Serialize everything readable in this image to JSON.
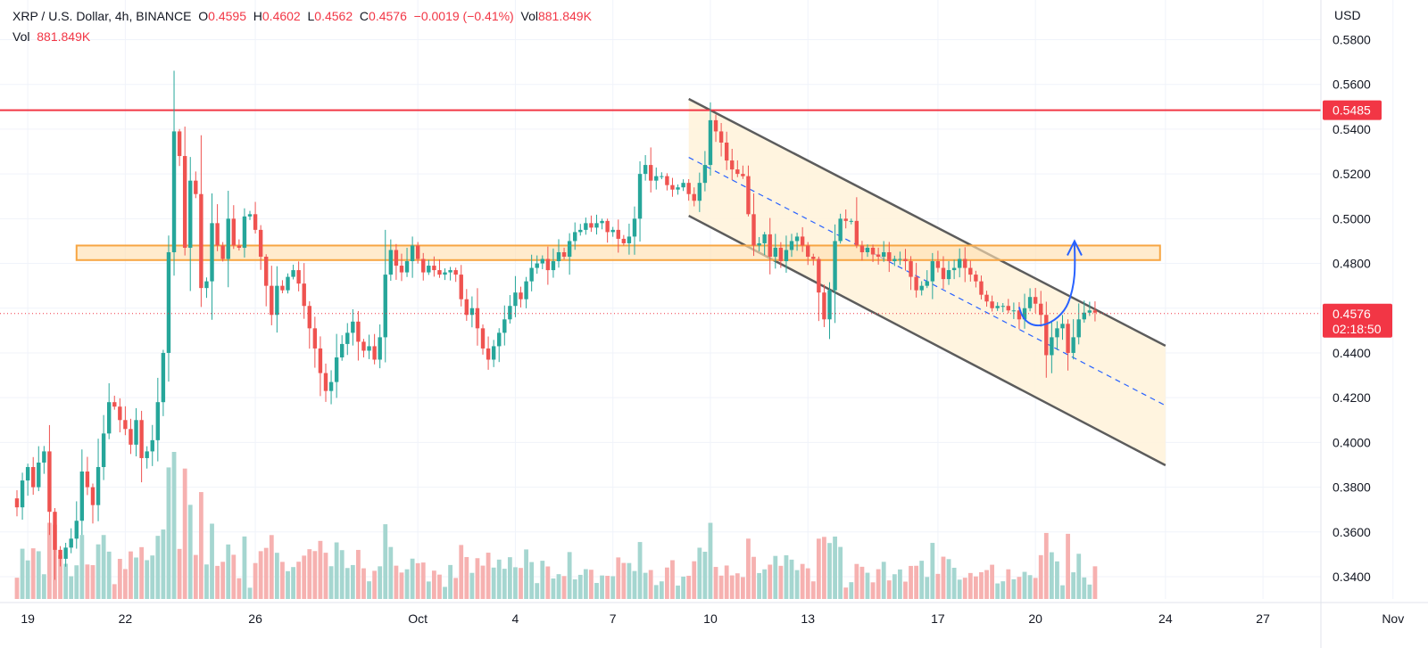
{
  "header": {
    "symbol": "XRP / U.S. Dollar, 4h, BINANCE",
    "o_label": "O",
    "o_value": "0.4595",
    "h_label": "H",
    "h_value": "0.4602",
    "l_label": "L",
    "l_value": "0.4562",
    "c_label": "C",
    "c_value": "0.4576",
    "change": "−0.0019 (−0.41%)",
    "vol_label": "Vol",
    "vol_value": "881.849K"
  },
  "vol_row": {
    "label": "Vol",
    "value": "881.849K"
  },
  "price_axis": {
    "currency": "USD",
    "ticks": [
      "0.5800",
      "0.5600",
      "0.5400",
      "0.5200",
      "0.5000",
      "0.4800",
      "0.4600",
      "0.4400",
      "0.4200",
      "0.4000",
      "0.3800",
      "0.3600",
      "0.3400"
    ],
    "resistance_label": "0.5485",
    "last_price_label": "0.4576",
    "countdown_label": "02:18:50"
  },
  "time_axis": {
    "ticks": [
      {
        "label": "19",
        "bar": 2
      },
      {
        "label": "22",
        "bar": 20
      },
      {
        "label": "26",
        "bar": 44
      },
      {
        "label": "Oct",
        "bar": 74
      },
      {
        "label": "4",
        "bar": 92
      },
      {
        "label": "7",
        "bar": 110
      },
      {
        "label": "10",
        "bar": 128
      },
      {
        "label": "13",
        "bar": 146
      },
      {
        "label": "17",
        "bar": 170
      },
      {
        "label": "20",
        "bar": 188
      },
      {
        "label": "24",
        "bar": 212
      },
      {
        "label": "27",
        "bar": 230
      },
      {
        "label": "Nov",
        "bar": 254
      }
    ]
  },
  "colors": {
    "up": "#26a69a",
    "down": "#ef5350",
    "up_vol": "#a5d6d0",
    "down_vol": "#f6b1b0",
    "resistance": "#f23645",
    "zone_fill": "#ffe0b2",
    "zone_border": "#f7a542",
    "channel_fill": "#fff3dc",
    "channel_line": "#5c5c5c",
    "mid_line": "#2962ff",
    "arrow": "#2962ff"
  },
  "chart_data": {
    "type": "candlestick",
    "timeframe": "4h",
    "ylim": [
      0.333,
      0.591
    ],
    "price_close": [
      0.371,
      0.383,
      0.389,
      0.38,
      0.391,
      0.396,
      0.369,
      0.352,
      0.348,
      0.353,
      0.357,
      0.365,
      0.387,
      0.38,
      0.372,
      0.389,
      0.404,
      0.418,
      0.416,
      0.41,
      0.406,
      0.399,
      0.41,
      0.393,
      0.396,
      0.401,
      0.418,
      0.44,
      0.485,
      0.539,
      0.528,
      0.487,
      0.517,
      0.511,
      0.469,
      0.472,
      0.498,
      0.488,
      0.482,
      0.5,
      0.488,
      0.487,
      0.501,
      0.502,
      0.495,
      0.483,
      0.47,
      0.457,
      0.47,
      0.468,
      0.474,
      0.477,
      0.471,
      0.461,
      0.451,
      0.442,
      0.431,
      0.423,
      0.427,
      0.438,
      0.444,
      0.449,
      0.454,
      0.445,
      0.441,
      0.443,
      0.437,
      0.447,
      0.475,
      0.486,
      0.479,
      0.476,
      0.481,
      0.488,
      0.482,
      0.476,
      0.479,
      0.477,
      0.475,
      0.476,
      0.477,
      0.475,
      0.464,
      0.457,
      0.46,
      0.451,
      0.442,
      0.437,
      0.443,
      0.449,
      0.455,
      0.461,
      0.467,
      0.464,
      0.472,
      0.478,
      0.48,
      0.482,
      0.477,
      0.481,
      0.485,
      0.483,
      0.49,
      0.494,
      0.495,
      0.498,
      0.496,
      0.498,
      0.499,
      0.494,
      0.495,
      0.491,
      0.489,
      0.492,
      0.5,
      0.52,
      0.524,
      0.517,
      0.519,
      0.519,
      0.515,
      0.513,
      0.514,
      0.516,
      0.511,
      0.508,
      0.516,
      0.524,
      0.544,
      0.539,
      0.534,
      0.526,
      0.522,
      0.52,
      0.519,
      0.502,
      0.488,
      0.489,
      0.493,
      0.483,
      0.487,
      0.481,
      0.486,
      0.49,
      0.492,
      0.488,
      0.483,
      0.482,
      0.467,
      0.455,
      0.468,
      0.49,
      0.5,
      0.499,
      0.499,
      0.488,
      0.485,
      0.487,
      0.484,
      0.483,
      0.485,
      0.481,
      0.482,
      0.482,
      0.481,
      0.474,
      0.468,
      0.47,
      0.472,
      0.481,
      0.478,
      0.473,
      0.477,
      0.478,
      0.482,
      0.478,
      0.475,
      0.472,
      0.466,
      0.463,
      0.46,
      0.461,
      0.461,
      0.459,
      0.459,
      0.455,
      0.46,
      0.465,
      0.462,
      0.457,
      0.439,
      0.447,
      0.451,
      0.453,
      0.44,
      0.447,
      0.455,
      0.458,
      0.459,
      0.458
    ],
    "series": [
      {
        "name": "XRP / U.S. Dollar",
        "values": "price_close"
      }
    ],
    "volume_note": "volume histogram drawn under price (relative)",
    "annotations": {
      "resistance_level": 0.5485,
      "support_zone": [
        0.4815,
        0.488
      ],
      "last_price": 0.4576,
      "descending_channel": {
        "from_bar": 124,
        "to_bar": 212,
        "upper": [
          0.5535,
          0.4432
        ],
        "lower": [
          0.5013,
          0.3898
        ]
      },
      "projected_move": "rebound arrow toward 0.48"
    }
  }
}
